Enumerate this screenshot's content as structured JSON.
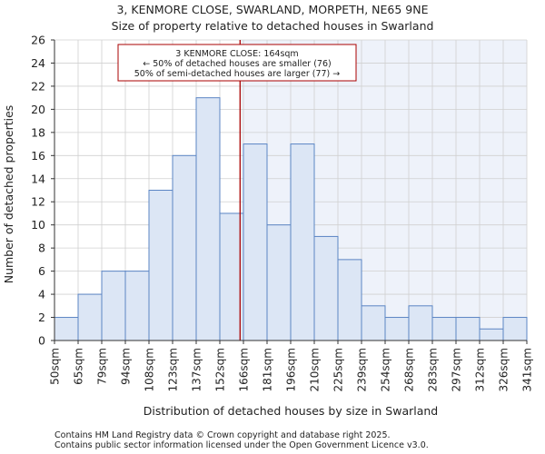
{
  "chart_data": {
    "type": "bar",
    "title_line1": "3, KENMORE CLOSE, SWARLAND, MORPETH, NE65 9NE",
    "title_line2": "Size of property relative to detached houses in Swarland",
    "xlabel": "Distribution of detached houses by size in Swarland",
    "ylabel": "Number of detached properties",
    "bin_edges": [
      50,
      65,
      79,
      94,
      108,
      123,
      137,
      152,
      166,
      181,
      196,
      210,
      225,
      239,
      254,
      268,
      283,
      297,
      312,
      326,
      341
    ],
    "tick_labels": [
      "50sqm",
      "65sqm",
      "79sqm",
      "94sqm",
      "108sqm",
      "123sqm",
      "137sqm",
      "152sqm",
      "166sqm",
      "181sqm",
      "196sqm",
      "210sqm",
      "225sqm",
      "239sqm",
      "254sqm",
      "268sqm",
      "283sqm",
      "297sqm",
      "312sqm",
      "326sqm",
      "341sqm"
    ],
    "values": [
      2,
      4,
      6,
      6,
      13,
      16,
      21,
      11,
      17,
      10,
      17,
      9,
      7,
      3,
      2,
      3,
      2,
      2,
      1,
      2
    ],
    "ylim": [
      0,
      26
    ],
    "yticks": [
      0,
      2,
      4,
      6,
      8,
      10,
      12,
      14,
      16,
      18,
      20,
      22,
      24,
      26
    ],
    "marker_value": 164,
    "annotation": {
      "line1": "3 KENMORE CLOSE: 164sqm",
      "line2": "← 50% of detached houses are smaller (76)",
      "line3": "50% of semi-detached houses are larger (77) →"
    },
    "colors": {
      "bar_fill": "#dce6f5",
      "bar_edge": "#5b85c4",
      "highlight_bg": "#eef2fa",
      "marker": "#aa0000"
    }
  },
  "footer": {
    "line1": "Contains HM Land Registry data © Crown copyright and database right 2025.",
    "line2": "Contains public sector information licensed under the Open Government Licence v3.0."
  }
}
